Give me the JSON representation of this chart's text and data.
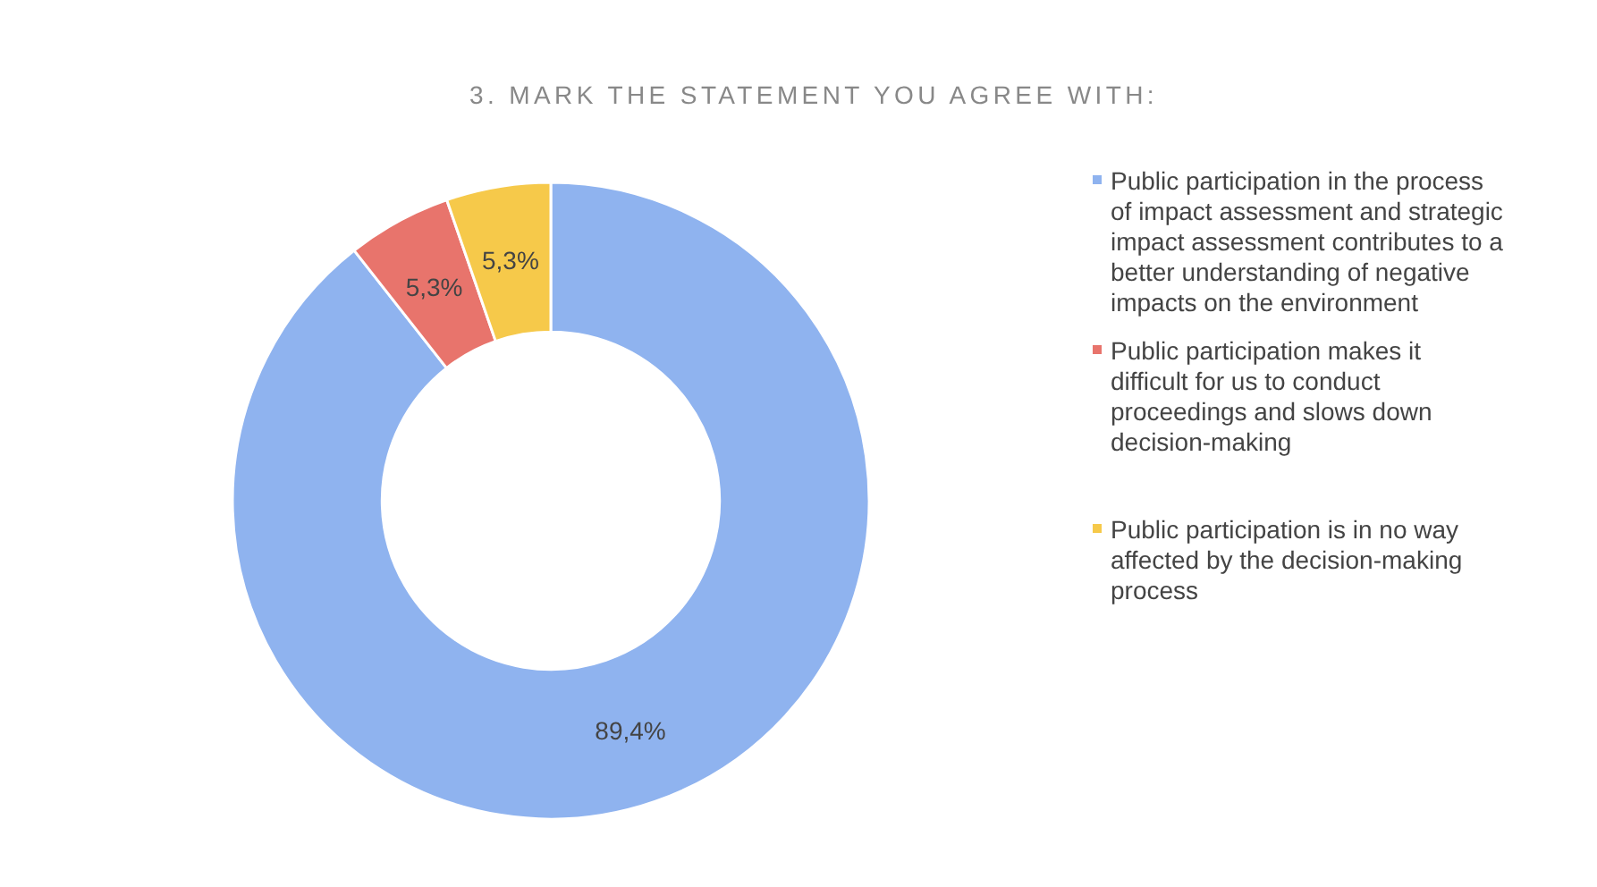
{
  "chart_data": {
    "type": "donut",
    "title": "3. MARK THE STATEMENT  YOU AGREE WITH:",
    "categories": [
      "Public participation in the process of impact assessment and strategic impact assessment contributes to a better understanding of negative impacts on the environment",
      "Public participation makes it difficult for us to conduct proceedings and slows down decision-making",
      "Public participation is in no way affected by the decision-making process"
    ],
    "values": [
      89.4,
      5.3,
      5.3
    ],
    "colors": [
      "#8fb3ef",
      "#e8746c",
      "#f6c94a"
    ],
    "value_labels": [
      "89,4%",
      "5,3%",
      "5,3%"
    ],
    "legend": "right"
  }
}
